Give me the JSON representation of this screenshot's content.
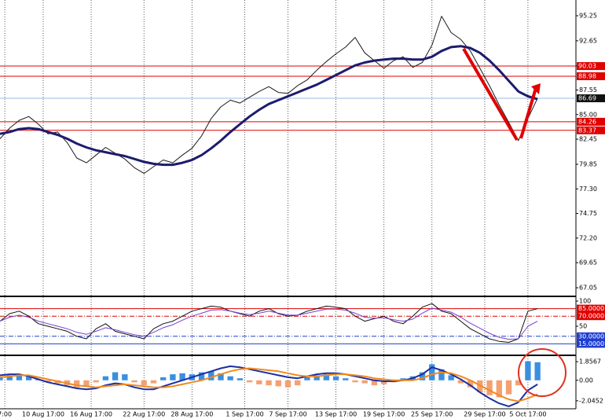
{
  "chart_data": [
    {
      "type": "line",
      "xlim": [
        0,
        60
      ],
      "ylim": [
        66.32,
        96.88
      ],
      "yticks": [
        95.25,
        92.65,
        90.05,
        87.55,
        {
          "value": 85,
          "label": "85.00"
        },
        82.45,
        79.85,
        {
          "value": 77.3,
          "label": "77.30"
        },
        74.75,
        {
          "value": 72.2,
          "label": "72.20"
        },
        69.65,
        67.05
      ],
      "levels": [
        90.03,
        88.98,
        84.26,
        83.37
      ],
      "level_color": "#e00000",
      "last": 86.69,
      "last_color": "#9ab8e6",
      "series": [
        {
          "color": "#1a1a1a",
          "width": 1,
          "values": [
            82.5,
            83.6,
            84.4,
            84.8,
            84.0,
            83.0,
            83.2,
            82.1,
            80.5,
            80.0,
            80.8,
            81.6,
            81.0,
            80.4,
            79.5,
            78.9,
            79.6,
            80.3,
            80.0,
            80.8,
            81.5,
            82.8,
            84.6,
            85.8,
            86.5,
            86.2,
            86.8,
            87.4,
            87.9,
            87.3,
            87.2,
            88.0,
            88.6,
            89.6,
            90.5,
            91.3,
            92.0,
            93.0,
            91.4,
            90.6,
            89.8,
            90.6,
            91.0,
            89.9,
            90.4,
            92.2,
            95.2,
            93.5,
            92.8,
            91.6,
            89.8,
            88.0,
            86.0,
            84.2,
            82.3,
            84.6,
            86.69
          ]
        },
        {
          "color": "#1c1c6e",
          "width": 3,
          "values": [
            83.0,
            83.2,
            83.5,
            83.6,
            83.5,
            83.2,
            82.9,
            82.5,
            82.0,
            81.6,
            81.3,
            81.1,
            80.9,
            80.7,
            80.4,
            80.1,
            79.9,
            79.8,
            79.8,
            80.0,
            80.3,
            80.8,
            81.5,
            82.3,
            83.2,
            84.0,
            84.8,
            85.5,
            86.1,
            86.5,
            86.9,
            87.3,
            87.7,
            88.1,
            88.6,
            89.1,
            89.6,
            90.1,
            90.4,
            90.6,
            90.7,
            90.8,
            90.8,
            90.7,
            90.7,
            91.0,
            91.6,
            92.0,
            92.1,
            91.9,
            91.4,
            90.6,
            89.6,
            88.5,
            87.4,
            86.9,
            86.6
          ]
        }
      ]
    },
    {
      "type": "line",
      "xlim": [
        0,
        60
      ],
      "ylim": [
        -4.7,
        107.8
      ],
      "yticks": [
        100,
        50
      ],
      "levels": [
        {
          "value": 85,
          "label": "85.0000",
          "color": "#e00000",
          "dash": "none"
        },
        {
          "value": 70,
          "label": "70.0000",
          "color": "#e00000",
          "dash": "6 2 1 2"
        },
        {
          "value": 30,
          "label": "30.0000",
          "color": "#1f3fd0",
          "dash": "6 2 1 2"
        },
        {
          "value": 15,
          "label": "15.0000",
          "color": "#1f3fd0",
          "dash": "none"
        }
      ],
      "series": [
        {
          "color": "#111111",
          "width": 1,
          "values": [
            60,
            75,
            80,
            70,
            55,
            50,
            45,
            40,
            30,
            25,
            45,
            55,
            40,
            35,
            30,
            25,
            45,
            55,
            60,
            70,
            80,
            85,
            90,
            88,
            80,
            75,
            70,
            80,
            85,
            75,
            70,
            72,
            80,
            85,
            90,
            88,
            85,
            70,
            60,
            65,
            70,
            60,
            55,
            70,
            88,
            95,
            80,
            75,
            60,
            45,
            35,
            25,
            20,
            18,
            25,
            80,
            85
          ]
        },
        {
          "color": "#7a3fd0",
          "width": 1,
          "values": [
            60,
            68,
            72,
            68,
            60,
            55,
            50,
            45,
            38,
            34,
            40,
            47,
            43,
            38,
            33,
            30,
            38,
            47,
            53,
            62,
            70,
            76,
            82,
            83,
            80,
            76,
            73,
            76,
            80,
            76,
            72,
            72,
            76,
            80,
            84,
            84,
            82,
            76,
            68,
            66,
            67,
            63,
            60,
            64,
            76,
            86,
            82,
            78,
            68,
            56,
            46,
            36,
            28,
            24,
            25,
            50,
            60
          ]
        }
      ]
    },
    {
      "type": "bar",
      "xlim": [
        0,
        60
      ],
      "ylim": [
        -2.841,
        2.334
      ],
      "yticks": [
        1.8567,
        {
          "value": 0,
          "label": "0.00"
        },
        -2.0452
      ],
      "xticks": [
        {
          "value": 0.5,
          "label": "7:00"
        },
        {
          "value": 4.5,
          "label": "10 Aug 17:00"
        },
        {
          "value": 9.5,
          "label": "16 Aug 17:00"
        },
        {
          "value": 15,
          "label": "22 Aug 17:00"
        },
        {
          "value": 20,
          "label": "28 Aug 17:00"
        },
        {
          "value": 25.5,
          "label": "1 Sep 17:00"
        },
        {
          "value": 30,
          "label": "7 Sep 17:00"
        },
        {
          "value": 35,
          "label": "13 Sep 17:00"
        },
        {
          "value": 40,
          "label": "19 Sep 17:00"
        },
        {
          "value": 45,
          "label": "25 Sep 17:00"
        },
        {
          "value": 50.5,
          "label": "29 Sep 17:00"
        },
        {
          "value": 55,
          "label": "5 Oct 17:00"
        }
      ],
      "color": "#3a8fe0",
      "negative_color": "#f4a070",
      "values": [
        0.3,
        0.5,
        0.6,
        0.4,
        0.1,
        -0.2,
        -0.3,
        -0.5,
        -0.7,
        -0.6,
        -0.2,
        0.4,
        0.8,
        0.6,
        -0.2,
        -0.5,
        -0.3,
        0.3,
        0.6,
        0.7,
        0.6,
        0.8,
        0.9,
        0.7,
        0.4,
        0.2,
        -0.2,
        -0.4,
        -0.5,
        -0.6,
        -0.7,
        -0.5,
        0.3,
        0.5,
        0.6,
        0.4,
        0.2,
        -0.2,
        -0.3,
        -0.5,
        -0.4,
        -0.2,
        0.2,
        0.4,
        0.8,
        1.6,
        1.1,
        0.5,
        -0.3,
        -0.7,
        -1.2,
        -1.5,
        -1.7,
        -1.4,
        -0.5,
        1.9,
        1.8
      ],
      "series": [
        {
          "color": "#1c2fa0",
          "width": 2,
          "values": [
            0.5,
            0.6,
            0.6,
            0.4,
            0.1,
            -0.2,
            -0.4,
            -0.6,
            -0.8,
            -0.9,
            -0.8,
            -0.5,
            -0.3,
            -0.4,
            -0.7,
            -0.9,
            -0.9,
            -0.6,
            -0.3,
            0.0,
            0.3,
            0.6,
            0.9,
            1.2,
            1.4,
            1.3,
            1.1,
            0.9,
            0.7,
            0.5,
            0.3,
            0.2,
            0.4,
            0.6,
            0.7,
            0.7,
            0.6,
            0.4,
            0.2,
            0.0,
            -0.1,
            -0.1,
            0.0,
            0.2,
            0.6,
            1.3,
            1.0,
            0.6,
            0.1,
            -0.5,
            -1.2,
            -1.8,
            -2.3,
            -2.6,
            -2.2,
            -1.0,
            -0.4
          ]
        },
        {
          "color": "#f08a20",
          "width": 2,
          "values": [
            0.3,
            0.4,
            0.5,
            0.5,
            0.3,
            0.1,
            -0.1,
            -0.3,
            -0.5,
            -0.6,
            -0.7,
            -0.6,
            -0.5,
            -0.4,
            -0.5,
            -0.6,
            -0.7,
            -0.7,
            -0.6,
            -0.4,
            -0.2,
            0.0,
            0.3,
            0.6,
            0.9,
            1.1,
            1.2,
            1.1,
            1.0,
            0.9,
            0.7,
            0.5,
            0.4,
            0.4,
            0.5,
            0.6,
            0.6,
            0.5,
            0.4,
            0.2,
            0.1,
            0.0,
            0.0,
            0.0,
            0.2,
            0.6,
            0.8,
            0.7,
            0.4,
            0.0,
            -0.5,
            -1.0,
            -1.5,
            -1.9,
            -2.1,
            -1.8,
            -1.4
          ]
        }
      ]
    }
  ]
}
